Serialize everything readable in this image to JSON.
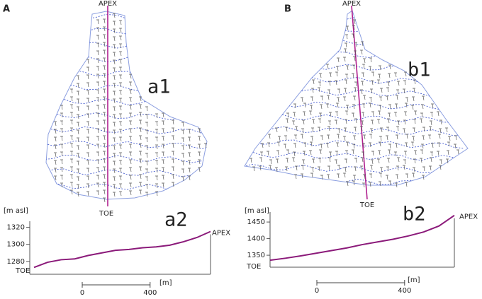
{
  "panels": [
    {
      "label": "A",
      "apex": "APEX",
      "toe": "TOE",
      "map_label": "a1"
    },
    {
      "label": "B",
      "apex": "APEX",
      "toe": "TOE",
      "map_label": "b1"
    }
  ],
  "chart_data": [
    {
      "type": "line",
      "title": "a2",
      "y_label": "[m asl]",
      "x_label": "[m]",
      "start_label": "TOE",
      "end_label": "APEX",
      "x": [
        0,
        80,
        160,
        240,
        320,
        400,
        480,
        560,
        640,
        720,
        800,
        880,
        960,
        1040
      ],
      "series": [
        {
          "color": "#8b1a7a",
          "values": [
            1273,
            1279,
            1282,
            1283,
            1287,
            1290,
            1293,
            1294,
            1296,
            1297,
            1299,
            1303,
            1308,
            1315
          ]
        }
      ],
      "xlim": [
        0,
        1040
      ],
      "ylim": [
        1265,
        1327
      ],
      "yticks": [
        1280,
        1300,
        1320
      ],
      "xticks": [
        0,
        400
      ]
    },
    {
      "type": "line",
      "title": "b2",
      "y_label": "[m asl]",
      "x_label": "[m]",
      "start_label": "TOE",
      "end_label": "APEX",
      "x": [
        0,
        70,
        140,
        210,
        280,
        350,
        420,
        490,
        560,
        630,
        700,
        770,
        840
      ],
      "series": [
        {
          "color": "#8b1a7a",
          "values": [
            1335,
            1341,
            1348,
            1356,
            1364,
            1372,
            1382,
            1390,
            1398,
            1408,
            1420,
            1438,
            1470
          ]
        }
      ],
      "xlim": [
        0,
        840
      ],
      "ylim": [
        1314,
        1480
      ],
      "yticks": [
        1350,
        1400,
        1450
      ],
      "xticks": [
        0,
        400
      ]
    }
  ]
}
